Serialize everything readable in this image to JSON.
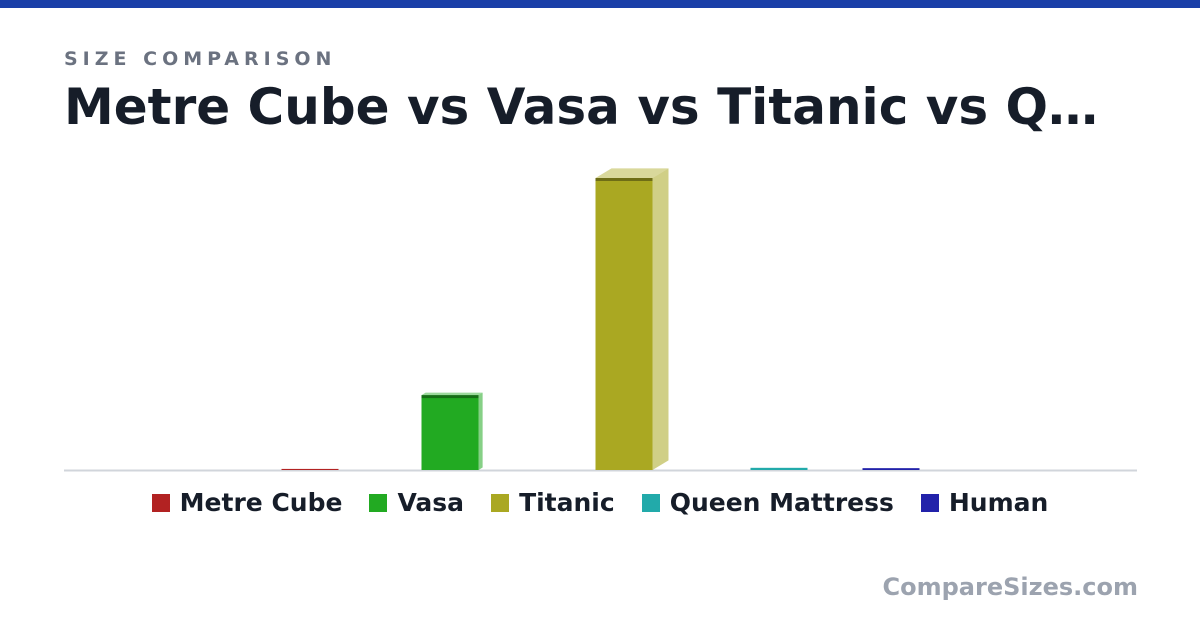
{
  "chart_data": {
    "type": "bar",
    "subtitle": "SIZE COMPARISON",
    "title": "Metre Cube vs Vasa vs Titanic vs Q…",
    "series": [
      {
        "name": "Metre Cube",
        "color": "#b22222",
        "values": [
          1
        ]
      },
      {
        "name": "Vasa",
        "color": "#22aa22",
        "values": [
          69
        ]
      },
      {
        "name": "Titanic",
        "color": "#aaa822",
        "values": [
          269
        ]
      },
      {
        "name": "Queen Mattress",
        "color": "#22aaaa",
        "values": [
          2
        ]
      },
      {
        "name": "Human",
        "color": "#2222aa",
        "values": [
          1.7
        ]
      }
    ],
    "ylim": [
      0,
      269
    ],
    "watermark": "CompareSizes.com"
  }
}
